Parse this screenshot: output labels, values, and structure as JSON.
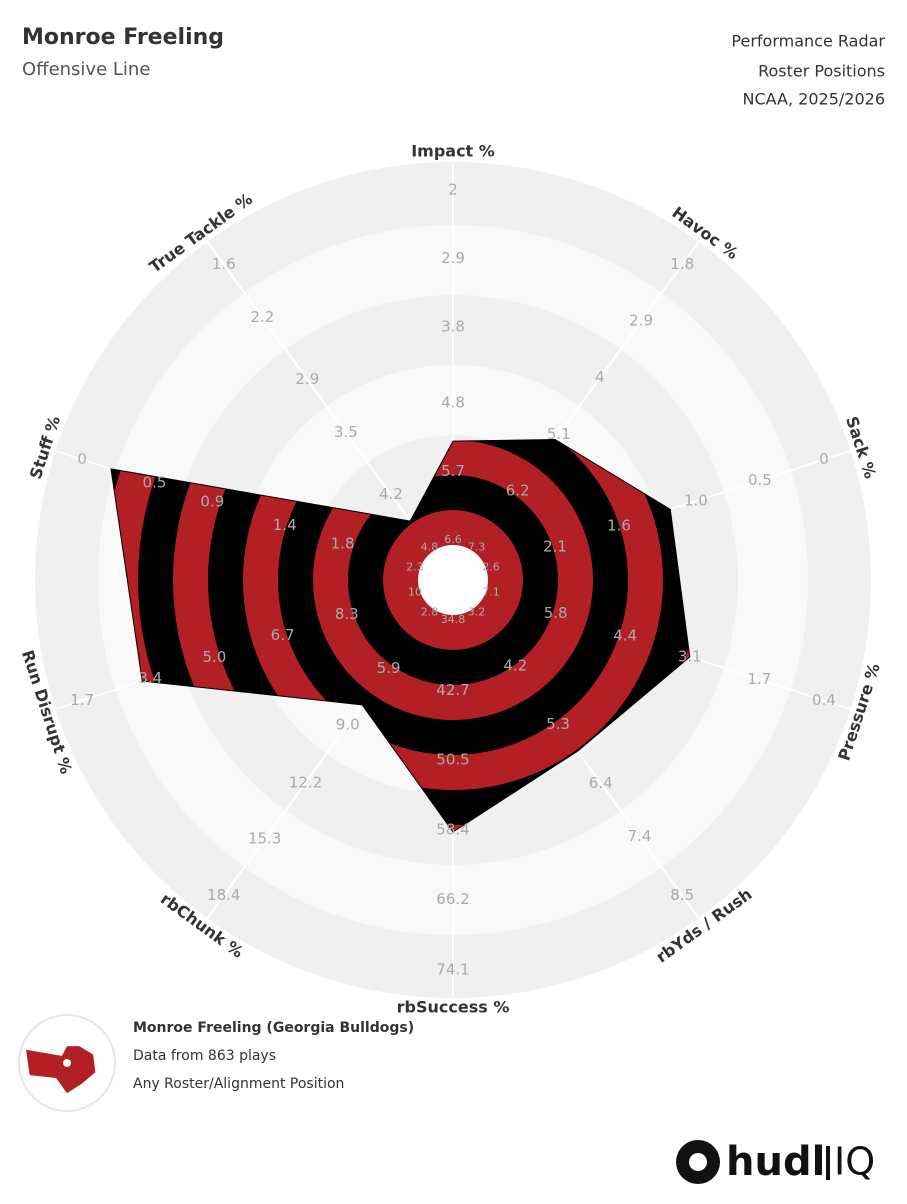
{
  "chart_data": {
    "type": "radar",
    "title": "Monroe Freeling",
    "subtitle": "Offensive Line",
    "header_lines": [
      "Performance Radar",
      "Roster Positions",
      "NCAA, 2025/2026"
    ],
    "categories": [
      "Impact %",
      "Havoc %",
      "Sack %",
      "Pressure %",
      "rbYds / Rush",
      "rbSuccess %",
      "rbChunk %",
      "Run Disrupt %",
      "Stuff %",
      "True Tackle %"
    ],
    "axis_ticks": [
      [
        6.6,
        5.7,
        4.8,
        3.8,
        2.9,
        2
      ],
      [
        7.3,
        6.2,
        5.1,
        4,
        2.9,
        1.8
      ],
      [
        2.6,
        2.1,
        1.6,
        {
          "value": 1,
          "label": "1.0"
        },
        0.5,
        0
      ],
      [
        7.1,
        5.8,
        4.4,
        3.1,
        1.7,
        0.4
      ],
      [
        3.2,
        4.2,
        5.3,
        6.4,
        7.4,
        8.5
      ],
      [
        34.8,
        42.7,
        50.5,
        58.4,
        66.2,
        74.1
      ],
      [
        2.8,
        5.9,
        {
          "value": 9,
          "label": "9.0"
        },
        12.2,
        15.3,
        18.4
      ],
      [
        10,
        8.3,
        6.7,
        {
          "value": 5,
          "label": "5.0"
        },
        3.4,
        1.7
      ],
      [
        2.3,
        1.8,
        1.4,
        0.9,
        0.5,
        0
      ],
      [
        4.8,
        4.2,
        3.5,
        2.9,
        2.2,
        1.6
      ]
    ],
    "series": [
      {
        "name": "Monroe Freeling (Georgia Bulldogs)",
        "color": "#b21f24",
        "stripe_color": "#000000",
        "values": [
          5.3,
          5.2,
          1.2,
          3.1,
          5.8,
          58.6,
          7.9,
          3.2,
          0.2,
          4.5
        ]
      }
    ],
    "legend_notes": [
      "Data from 863 plays",
      "Any Roster/Alignment Position"
    ]
  },
  "brand": {
    "name": "hudl",
    "suffix": "IQ"
  }
}
